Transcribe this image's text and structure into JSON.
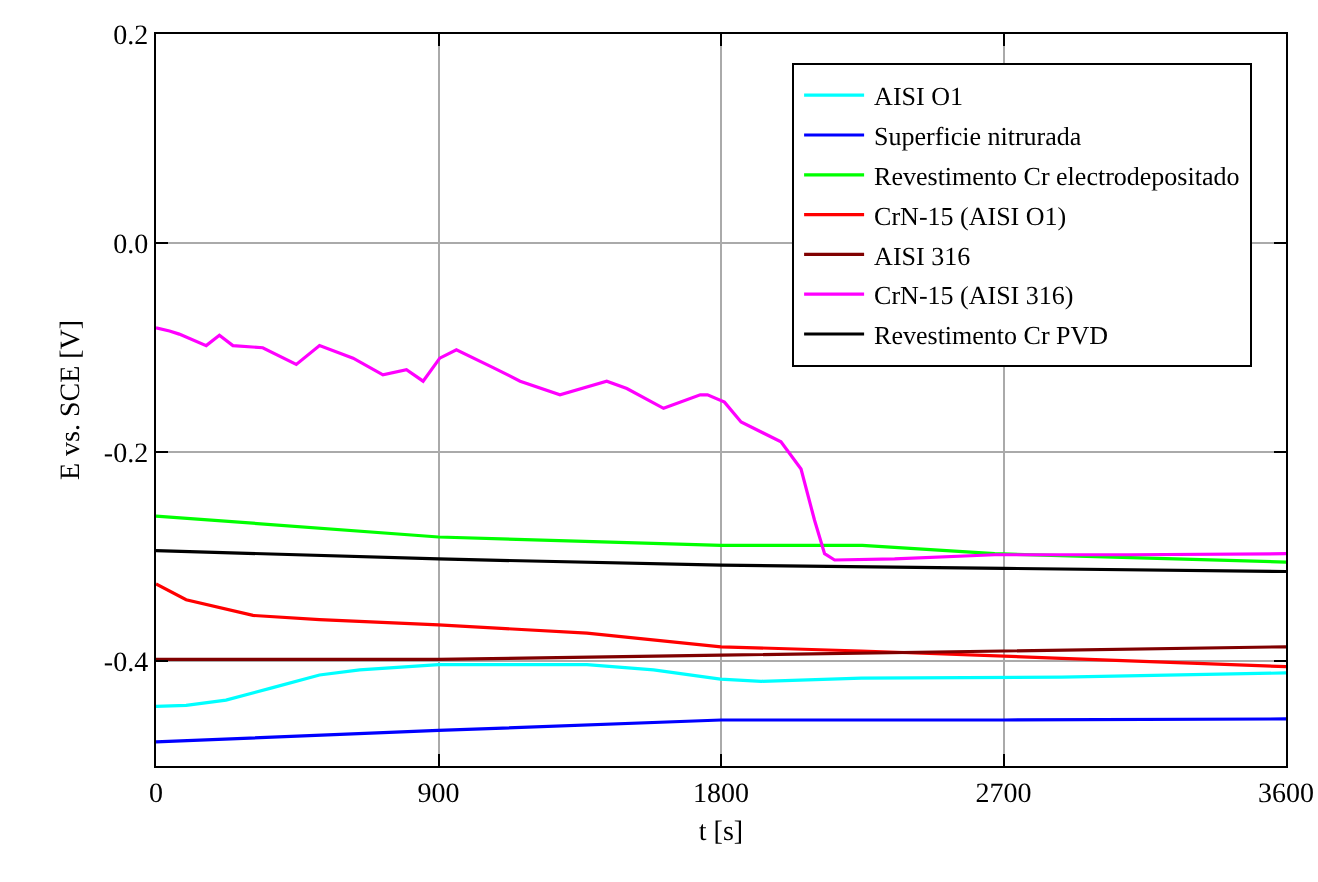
{
  "chart_data": {
    "type": "line",
    "xlabel": "t [s]",
    "ylabel": "E vs. SCE [V]",
    "xlim": [
      0,
      3600
    ],
    "xticks": [
      0,
      900,
      1800,
      2700,
      3600
    ],
    "ylim": [
      -0.5,
      0.2
    ],
    "yticks": [
      {
        "value": 0.2,
        "label": "0.2"
      },
      {
        "value": 0,
        "label": "0.0"
      },
      {
        "value": -0.2,
        "label": "-0.2"
      },
      {
        "value": -0.4,
        "label": "-0.4"
      }
    ],
    "grid": true,
    "legend": "top right",
    "marker": "none",
    "line_style": "solid",
    "series": [
      {
        "name": "AISI O1",
        "color": "#00ffff",
        "x": [
          0,
          96,
          223,
          372,
          521,
          649,
          900,
          1373,
          1585,
          1798,
          1928,
          2247,
          2885,
          3600
        ],
        "values": [
          -0.443,
          -0.442,
          -0.437,
          -0.425,
          -0.413,
          -0.408,
          -0.403,
          -0.403,
          -0.408,
          -0.417,
          -0.419,
          -0.416,
          -0.415,
          -0.411
        ]
      },
      {
        "name": "Superficie nitrurada",
        "color": "#0000ff",
        "x": [
          0,
          900,
          1800,
          2700,
          3600
        ],
        "values": [
          -0.477,
          -0.466,
          -0.456,
          -0.456,
          -0.455
        ]
      },
      {
        "name": "Revestimento Cr electrodepositado",
        "color": "#00ff00",
        "x": [
          0,
          900,
          1800,
          2250,
          2672,
          3600
        ],
        "values": [
          -0.261,
          -0.281,
          -0.289,
          -0.289,
          -0.297,
          -0.305
        ]
      },
      {
        "name": "CrN-15 (AISI O1)",
        "color": "#ff0000",
        "x": [
          0,
          96,
          309,
          521,
          900,
          1373,
          1800,
          2247,
          2885,
          3600
        ],
        "values": [
          -0.326,
          -0.341,
          -0.356,
          -0.36,
          -0.365,
          -0.373,
          -0.386,
          -0.39,
          -0.397,
          -0.405
        ]
      },
      {
        "name": "AISI 316",
        "color": "#800000",
        "x": [
          0,
          900,
          1800,
          2700,
          3600
        ],
        "values": [
          -0.398,
          -0.398,
          -0.394,
          -0.39,
          -0.386
        ]
      },
      {
        "name": "CrN-15 (AISI 316)",
        "color": "#ff00ff",
        "x": [
          0,
          43,
          74,
          160,
          202,
          245,
          340,
          447,
          521,
          628,
          723,
          798,
          851,
          904,
          957,
          1074,
          1160,
          1287,
          1436,
          1500,
          1617,
          1734,
          1757,
          1811,
          1864,
          1991,
          2055,
          2098,
          2130,
          2162,
          2353,
          2672,
          3098,
          3600
        ],
        "values": [
          -0.081,
          -0.084,
          -0.087,
          -0.098,
          -0.088,
          -0.098,
          -0.1,
          -0.116,
          -0.098,
          -0.11,
          -0.126,
          -0.121,
          -0.132,
          -0.11,
          -0.102,
          -0.119,
          -0.132,
          -0.145,
          -0.132,
          -0.139,
          -0.158,
          -0.145,
          -0.145,
          -0.152,
          -0.171,
          -0.19,
          -0.216,
          -0.265,
          -0.297,
          -0.303,
          -0.302,
          -0.298,
          -0.298,
          -0.297
        ]
      },
      {
        "name": "Revestimento Cr PVD",
        "color": "#000000",
        "x": [
          0,
          900,
          1800,
          2700,
          3600
        ],
        "values": [
          -0.294,
          -0.302,
          -0.308,
          -0.311,
          -0.314
        ]
      }
    ]
  }
}
